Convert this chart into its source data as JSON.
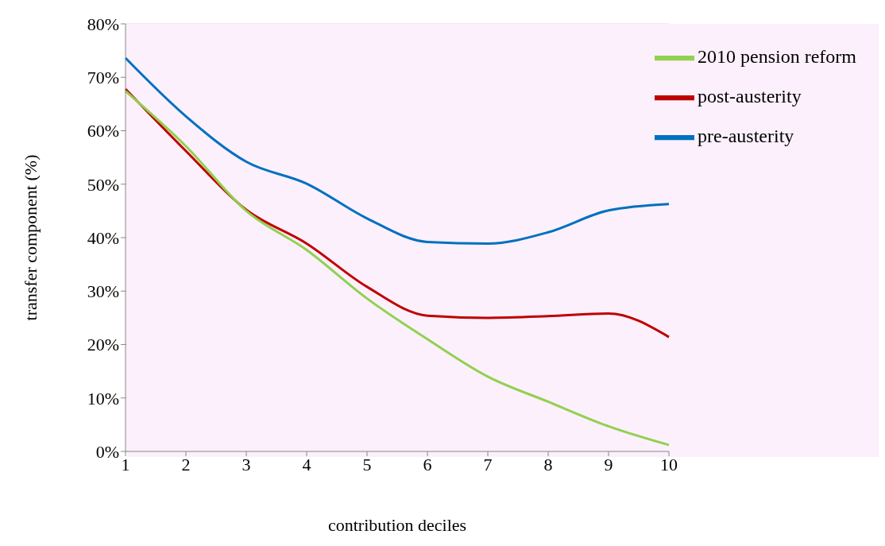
{
  "chart_data": {
    "type": "line",
    "xlabel": "contribution deciles",
    "ylabel": "transfer component (%)",
    "categories": [
      "1",
      "2",
      "3",
      "4",
      "5",
      "6",
      "7",
      "8",
      "9",
      "10"
    ],
    "series": [
      {
        "name": "pre-austerity",
        "color": "#0070c0",
        "values": [
          73.6,
          62.7,
          54.2,
          50.1,
          43.6,
          39.2,
          38.9,
          41.0,
          45.1,
          46.3
        ]
      },
      {
        "name": "post-austerity",
        "color": "#c00000",
        "values": [
          67.8,
          56.2,
          45.2,
          38.9,
          30.8,
          25.4,
          25.0,
          25.3,
          25.8,
          21.4
        ]
      },
      {
        "name": "2010 pension reform",
        "color": "#92d050",
        "values": [
          67.4,
          57.1,
          45.0,
          37.7,
          28.6,
          21.0,
          14.0,
          9.3,
          4.7,
          1.2
        ]
      }
    ],
    "ylim": [
      0,
      80
    ],
    "yticks": [
      {
        "value": 0,
        "label": "0%"
      },
      {
        "value": 10,
        "label": "10%"
      },
      {
        "value": 20,
        "label": "20%"
      },
      {
        "value": 30,
        "label": "30%"
      },
      {
        "value": 40,
        "label": "40%"
      },
      {
        "value": 50,
        "label": "50%"
      },
      {
        "value": 60,
        "label": "60%"
      },
      {
        "value": 70,
        "label": "70%"
      },
      {
        "value": 80,
        "label": "80%"
      }
    ],
    "grid": "y",
    "legend": "top right",
    "marker": "none",
    "line_style": "solid"
  }
}
